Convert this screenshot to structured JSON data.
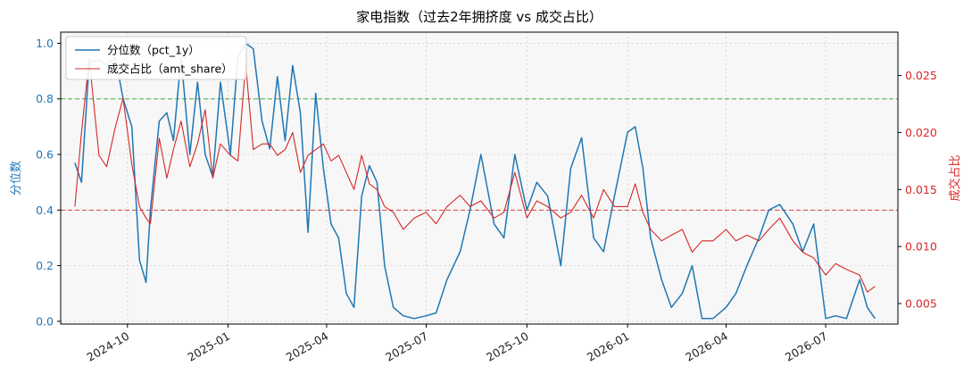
{
  "chart_data": {
    "type": "line",
    "title": "家电指数（过去2年拥挤度 vs 成交占比）",
    "y_left_label": "分位数",
    "y_right_label": "成交占比",
    "y_left_range": [
      -0.01,
      1.04
    ],
    "y_right_range": [
      0.0032,
      0.0288
    ],
    "y_left_ticks": [
      "0.0",
      "0.2",
      "0.4",
      "0.6",
      "0.8",
      "1.0"
    ],
    "y_right_ticks": [
      "0.005",
      "0.010",
      "0.015",
      "0.020",
      "0.025"
    ],
    "x_range": [
      "2024-08-01",
      "2026-09-05"
    ],
    "x_ticks": [
      "2024-10",
      "2025-01",
      "2025-04",
      "2025-07",
      "2025-10",
      "2026-01",
      "2026-04",
      "2026-07"
    ],
    "grid": true,
    "legend_position": "top-left",
    "series": [
      {
        "name": "分位数（pct_1y）",
        "axis": "left",
        "color": "#1f77b4",
        "x": [
          "2024-08-14",
          "2024-08-20",
          "2024-08-27",
          "2024-09-05",
          "2024-09-12",
          "2024-09-20",
          "2024-09-27",
          "2024-10-05",
          "2024-10-12",
          "2024-10-18",
          "2024-10-22",
          "2024-10-30",
          "2024-11-06",
          "2024-11-12",
          "2024-11-19",
          "2024-11-27",
          "2024-12-04",
          "2024-12-11",
          "2024-12-18",
          "2024-12-25",
          "2025-01-03",
          "2025-01-10",
          "2025-01-17",
          "2025-01-24",
          "2025-02-01",
          "2025-02-08",
          "2025-02-15",
          "2025-02-22",
          "2025-03-01",
          "2025-03-08",
          "2025-03-15",
          "2025-03-22",
          "2025-03-29",
          "2025-04-05",
          "2025-04-12",
          "2025-04-19",
          "2025-04-26",
          "2025-05-03",
          "2025-05-10",
          "2025-05-17",
          "2025-05-24",
          "2025-06-01",
          "2025-06-10",
          "2025-06-20",
          "2025-07-01",
          "2025-07-10",
          "2025-07-20",
          "2025-08-01",
          "2025-08-10",
          "2025-08-20",
          "2025-09-01",
          "2025-09-10",
          "2025-09-20",
          "2025-10-01",
          "2025-10-10",
          "2025-10-20",
          "2025-11-01",
          "2025-11-10",
          "2025-11-20",
          "2025-12-01",
          "2025-12-10",
          "2025-12-20",
          "2026-01-01",
          "2026-01-08",
          "2026-01-15",
          "2026-01-22",
          "2026-02-01",
          "2026-02-10",
          "2026-02-20",
          "2026-03-01",
          "2026-03-10",
          "2026-03-20",
          "2026-04-01",
          "2026-04-10",
          "2026-04-20",
          "2026-05-01",
          "2026-05-10",
          "2026-05-20",
          "2026-06-01",
          "2026-06-10",
          "2026-06-20",
          "2026-07-01",
          "2026-07-10",
          "2026-07-20",
          "2026-08-01",
          "2026-08-08",
          "2026-08-15"
        ],
        "values": [
          0.57,
          0.5,
          0.93,
          0.94,
          0.92,
          0.95,
          0.8,
          0.7,
          0.22,
          0.14,
          0.4,
          0.72,
          0.75,
          0.65,
          0.95,
          0.6,
          0.86,
          0.6,
          0.52,
          0.86,
          0.6,
          0.95,
          1.0,
          0.98,
          0.72,
          0.62,
          0.88,
          0.65,
          0.92,
          0.75,
          0.32,
          0.82,
          0.55,
          0.35,
          0.3,
          0.1,
          0.05,
          0.45,
          0.56,
          0.5,
          0.2,
          0.05,
          0.02,
          0.01,
          0.02,
          0.03,
          0.15,
          0.25,
          0.4,
          0.6,
          0.35,
          0.3,
          0.6,
          0.4,
          0.5,
          0.45,
          0.2,
          0.55,
          0.66,
          0.3,
          0.25,
          0.45,
          0.68,
          0.7,
          0.55,
          0.3,
          0.15,
          0.05,
          0.1,
          0.2,
          0.01,
          0.01,
          0.05,
          0.1,
          0.2,
          0.3,
          0.4,
          0.42,
          0.35,
          0.25,
          0.35,
          0.01,
          0.02,
          0.01,
          0.15,
          0.05,
          0.01
        ]
      },
      {
        "name": "成交占比（amt_share）",
        "axis": "right",
        "color": "#d62728",
        "x": [
          "2024-08-14",
          "2024-08-20",
          "2024-08-27",
          "2024-09-05",
          "2024-09-12",
          "2024-09-20",
          "2024-09-27",
          "2024-10-05",
          "2024-10-12",
          "2024-10-18",
          "2024-10-22",
          "2024-10-30",
          "2024-11-06",
          "2024-11-12",
          "2024-11-19",
          "2024-11-27",
          "2024-12-04",
          "2024-12-11",
          "2024-12-18",
          "2024-12-25",
          "2025-01-03",
          "2025-01-10",
          "2025-01-17",
          "2025-01-24",
          "2025-02-01",
          "2025-02-08",
          "2025-02-15",
          "2025-02-22",
          "2025-03-01",
          "2025-03-08",
          "2025-03-15",
          "2025-03-22",
          "2025-03-29",
          "2025-04-05",
          "2025-04-12",
          "2025-04-19",
          "2025-04-26",
          "2025-05-03",
          "2025-05-10",
          "2025-05-17",
          "2025-05-24",
          "2025-06-01",
          "2025-06-10",
          "2025-06-20",
          "2025-07-01",
          "2025-07-10",
          "2025-07-20",
          "2025-08-01",
          "2025-08-10",
          "2025-08-20",
          "2025-09-01",
          "2025-09-10",
          "2025-09-20",
          "2025-10-01",
          "2025-10-10",
          "2025-10-20",
          "2025-11-01",
          "2025-11-10",
          "2025-11-20",
          "2025-12-01",
          "2025-12-10",
          "2025-12-20",
          "2026-01-01",
          "2026-01-08",
          "2026-01-15",
          "2026-01-22",
          "2026-02-01",
          "2026-02-10",
          "2026-02-20",
          "2026-03-01",
          "2026-03-10",
          "2026-03-20",
          "2026-04-01",
          "2026-04-10",
          "2026-04-20",
          "2026-05-01",
          "2026-05-10",
          "2026-05-20",
          "2026-06-01",
          "2026-06-10",
          "2026-06-20",
          "2026-07-01",
          "2026-07-10",
          "2026-07-20",
          "2026-08-01",
          "2026-08-08",
          "2026-08-15"
        ],
        "values": [
          0.0135,
          0.02,
          0.0265,
          0.018,
          0.017,
          0.0205,
          0.023,
          0.0172,
          0.0135,
          0.0125,
          0.012,
          0.0195,
          0.016,
          0.0185,
          0.021,
          0.017,
          0.019,
          0.022,
          0.016,
          0.019,
          0.018,
          0.0175,
          0.026,
          0.0185,
          0.019,
          0.019,
          0.018,
          0.0185,
          0.02,
          0.0165,
          0.018,
          0.0185,
          0.019,
          0.0175,
          0.018,
          0.0165,
          0.015,
          0.018,
          0.0155,
          0.015,
          0.0135,
          0.013,
          0.0115,
          0.0125,
          0.013,
          0.012,
          0.0135,
          0.0145,
          0.0135,
          0.014,
          0.0125,
          0.013,
          0.0165,
          0.0125,
          0.014,
          0.0135,
          0.0125,
          0.013,
          0.0145,
          0.0125,
          0.015,
          0.0135,
          0.0135,
          0.0155,
          0.013,
          0.0115,
          0.0105,
          0.011,
          0.0115,
          0.0095,
          0.0105,
          0.0105,
          0.0115,
          0.0105,
          0.011,
          0.0105,
          0.0115,
          0.0125,
          0.0105,
          0.0095,
          0.009,
          0.0075,
          0.0085,
          0.008,
          0.0075,
          0.006,
          0.0065
        ]
      }
    ],
    "reference_lines": [
      {
        "axis": "left",
        "value": 0.8,
        "color": "#2ca02c"
      },
      {
        "axis": "left",
        "value": 0.4,
        "color": "#d62728"
      }
    ]
  }
}
